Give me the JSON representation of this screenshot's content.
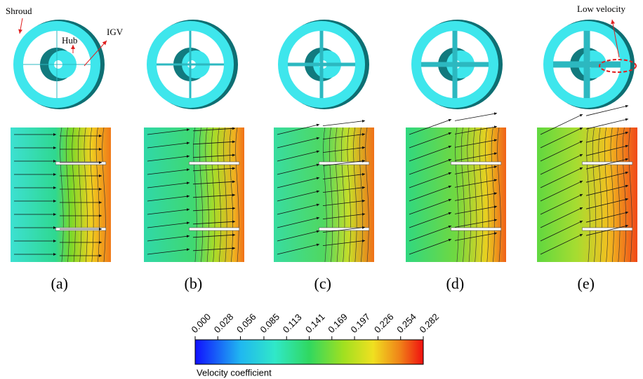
{
  "annotations": {
    "shroud": "Shroud",
    "hub": "Hub",
    "igv": "IGV",
    "low_velocity": "Low velocity"
  },
  "panels": [
    "(a)",
    "(b)",
    "(c)",
    "(d)",
    "(e)"
  ],
  "colorbar": {
    "title": "Velocity coefficient",
    "ticks": [
      {
        "value": 0,
        "label": "0.000"
      },
      {
        "value": 0.028,
        "label": "0.028"
      },
      {
        "value": 0.056,
        "label": "0.056"
      },
      {
        "value": 0.085,
        "label": "0.085"
      },
      {
        "value": 0.113,
        "label": "0.113"
      },
      {
        "value": 0.141,
        "label": "0.141"
      },
      {
        "value": 0.169,
        "label": "0.169"
      },
      {
        "value": 0.197,
        "label": "0.197"
      },
      {
        "value": 0.226,
        "label": "0.226"
      },
      {
        "value": 0.254,
        "label": "0.254"
      },
      {
        "value": 0.282,
        "label": "0.282"
      }
    ]
  }
}
